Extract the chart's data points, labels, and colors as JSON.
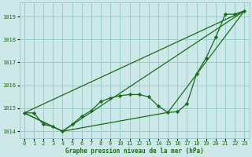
{
  "background_color": "#cce8e8",
  "grid_color": "#99cccc",
  "line_color": "#1a6b1a",
  "marker_color": "#1a6b1a",
  "title": "Graphe pression niveau de la mer (hPa)",
  "ylim": [
    1013.7,
    1019.6
  ],
  "xlim": [
    -0.5,
    23.5
  ],
  "yticks": [
    1014,
    1015,
    1016,
    1017,
    1018,
    1019
  ],
  "xticks": [
    0,
    1,
    2,
    3,
    4,
    5,
    6,
    7,
    8,
    9,
    10,
    11,
    12,
    13,
    14,
    15,
    16,
    17,
    18,
    19,
    20,
    21,
    22,
    23
  ],
  "line1_x": [
    0,
    1,
    2,
    3,
    4,
    5,
    6,
    7,
    8,
    9,
    10,
    11,
    12,
    13,
    14,
    15,
    16,
    17,
    18,
    19,
    20,
    21,
    22,
    23
  ],
  "line1_y": [
    1014.8,
    1014.8,
    1014.3,
    1014.2,
    1014.0,
    1014.3,
    1014.65,
    1014.9,
    1015.3,
    1015.45,
    1015.55,
    1015.6,
    1015.6,
    1015.5,
    1015.1,
    1014.82,
    1014.85,
    1015.2,
    1016.5,
    1017.2,
    1018.1,
    1019.1,
    1019.1,
    1019.25
  ],
  "line2_x": [
    0,
    23
  ],
  "line2_y": [
    1014.8,
    1019.25
  ],
  "line3_x": [
    0,
    4,
    23
  ],
  "line3_y": [
    1014.8,
    1014.0,
    1019.25
  ],
  "line4_x": [
    0,
    4,
    15,
    23
  ],
  "line4_y": [
    1014.8,
    1014.0,
    1014.82,
    1019.25
  ]
}
